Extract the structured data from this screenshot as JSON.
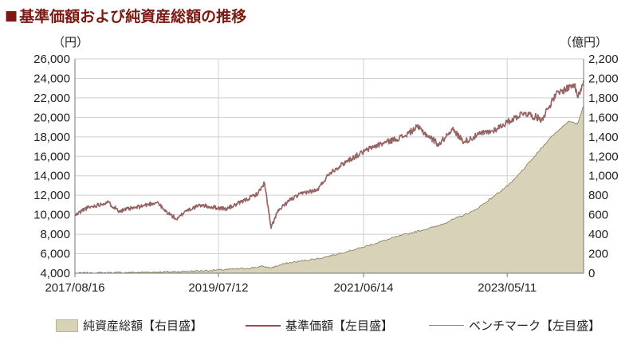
{
  "title": {
    "mark": "■",
    "text": "基準価額および純資産総額の推移"
  },
  "chart_data": {
    "type": "area",
    "left_unit": "（円）",
    "right_unit": "（億円）",
    "left_axis": {
      "ylim": [
        4000,
        26000
      ],
      "ticks": [
        "4,000",
        "6,000",
        "8,000",
        "10,000",
        "12,000",
        "14,000",
        "16,000",
        "18,000",
        "20,000",
        "22,000",
        "24,000",
        "26,000"
      ]
    },
    "right_axis": {
      "ylim": [
        0,
        2200
      ],
      "ticks": [
        "0",
        "200",
        "400",
        "600",
        "800",
        "1,000",
        "1,200",
        "1,400",
        "1,600",
        "1,800",
        "2,000",
        "2,200"
      ]
    },
    "x_tick_labels": [
      "2017/08/16",
      "2019/07/12",
      "2021/06/14",
      "2023/05/11"
    ],
    "x_tick_dates": [
      "2017-08-16",
      "2019-07-12",
      "2021-06-14",
      "2023-05-11"
    ],
    "x_range": [
      "2017-08-16",
      "2024-05-15"
    ],
    "grid": true,
    "legend_position": "bottom",
    "series": [
      {
        "name": "純資産総額【右目盛】",
        "axis": "right",
        "kind": "area",
        "color": "#d8d3b8",
        "edge_color": "#7f7a55",
        "points": [
          [
            "2017-08-16",
            0
          ],
          [
            "2017-12-01",
            3
          ],
          [
            "2018-06-01",
            8
          ],
          [
            "2018-12-01",
            15
          ],
          [
            "2019-06-01",
            28
          ],
          [
            "2019-12-01",
            50
          ],
          [
            "2020-02-15",
            70
          ],
          [
            "2020-03-20",
            55
          ],
          [
            "2020-06-01",
            100
          ],
          [
            "2020-12-01",
            160
          ],
          [
            "2021-06-01",
            260
          ],
          [
            "2021-12-01",
            380
          ],
          [
            "2022-06-01",
            480
          ],
          [
            "2022-12-01",
            640
          ],
          [
            "2023-03-01",
            780
          ],
          [
            "2023-06-01",
            930
          ],
          [
            "2023-09-01",
            1150
          ],
          [
            "2023-12-01",
            1380
          ],
          [
            "2024-03-01",
            1560
          ],
          [
            "2024-04-15",
            1530
          ],
          [
            "2024-05-15",
            1720
          ]
        ]
      },
      {
        "name": "基準価額【左目盛】",
        "axis": "left",
        "kind": "line",
        "color": "#9a4a4a",
        "points": [
          [
            "2017-08-16",
            9900
          ],
          [
            "2017-10-01",
            10600
          ],
          [
            "2018-01-20",
            11300
          ],
          [
            "2018-03-20",
            10400
          ],
          [
            "2018-06-01",
            10700
          ],
          [
            "2018-09-20",
            11300
          ],
          [
            "2018-10-20",
            10500
          ],
          [
            "2018-12-25",
            9500
          ],
          [
            "2019-02-01",
            10400
          ],
          [
            "2019-04-20",
            11000
          ],
          [
            "2019-06-01",
            10800
          ],
          [
            "2019-08-20",
            10600
          ],
          [
            "2019-11-01",
            11300
          ],
          [
            "2020-01-20",
            12200
          ],
          [
            "2020-02-20",
            13300
          ],
          [
            "2020-03-23",
            8600
          ],
          [
            "2020-04-20",
            10200
          ],
          [
            "2020-06-20",
            11500
          ],
          [
            "2020-09-01",
            12300
          ],
          [
            "2020-11-01",
            12500
          ],
          [
            "2021-01-01",
            14300
          ],
          [
            "2021-04-01",
            15600
          ],
          [
            "2021-08-01",
            17000
          ],
          [
            "2021-12-31",
            18100
          ],
          [
            "2022-03-01",
            19000
          ],
          [
            "2022-06-15",
            17200
          ],
          [
            "2022-08-15",
            18800
          ],
          [
            "2022-10-15",
            17500
          ],
          [
            "2022-12-31",
            18300
          ],
          [
            "2023-03-01",
            18600
          ],
          [
            "2023-07-31",
            20500
          ],
          [
            "2023-10-25",
            19800
          ],
          [
            "2024-01-01",
            22300
          ],
          [
            "2024-03-28",
            23400
          ],
          [
            "2024-04-19",
            22100
          ],
          [
            "2024-05-15",
            23800
          ]
        ]
      },
      {
        "name": "ベンチマーク【左目盛】",
        "axis": "left",
        "kind": "line",
        "color": "#8a8a8a",
        "points": [
          [
            "2017-08-16",
            9850
          ],
          [
            "2017-10-01",
            10550
          ],
          [
            "2018-01-20",
            11250
          ],
          [
            "2018-03-20",
            10350
          ],
          [
            "2018-06-01",
            10650
          ],
          [
            "2018-09-20",
            11250
          ],
          [
            "2018-10-20",
            10450
          ],
          [
            "2018-12-25",
            9450
          ],
          [
            "2019-02-01",
            10350
          ],
          [
            "2019-04-20",
            10950
          ],
          [
            "2019-06-01",
            10750
          ],
          [
            "2019-08-20",
            10550
          ],
          [
            "2019-11-01",
            11250
          ],
          [
            "2020-01-20",
            12150
          ],
          [
            "2020-02-20",
            13250
          ],
          [
            "2020-03-23",
            8550
          ],
          [
            "2020-04-20",
            10150
          ],
          [
            "2020-06-20",
            11450
          ],
          [
            "2020-09-01",
            12250
          ],
          [
            "2020-11-01",
            12450
          ],
          [
            "2021-01-01",
            14250
          ],
          [
            "2021-04-01",
            15550
          ],
          [
            "2021-08-01",
            16950
          ],
          [
            "2021-12-31",
            18050
          ],
          [
            "2022-03-01",
            18950
          ],
          [
            "2022-06-15",
            17150
          ],
          [
            "2022-08-15",
            18750
          ],
          [
            "2022-10-15",
            17450
          ],
          [
            "2022-12-31",
            18250
          ],
          [
            "2023-03-01",
            18550
          ],
          [
            "2023-07-31",
            20450
          ],
          [
            "2023-10-25",
            19750
          ],
          [
            "2024-01-01",
            22250
          ],
          [
            "2024-03-28",
            23350
          ],
          [
            "2024-04-19",
            22050
          ],
          [
            "2024-05-15",
            23750
          ]
        ]
      }
    ]
  },
  "legend": {
    "item1": "純資産総額【右目盛】",
    "item2": "基準価額【左目盛】",
    "item3": "ベンチマーク【左目盛】"
  }
}
